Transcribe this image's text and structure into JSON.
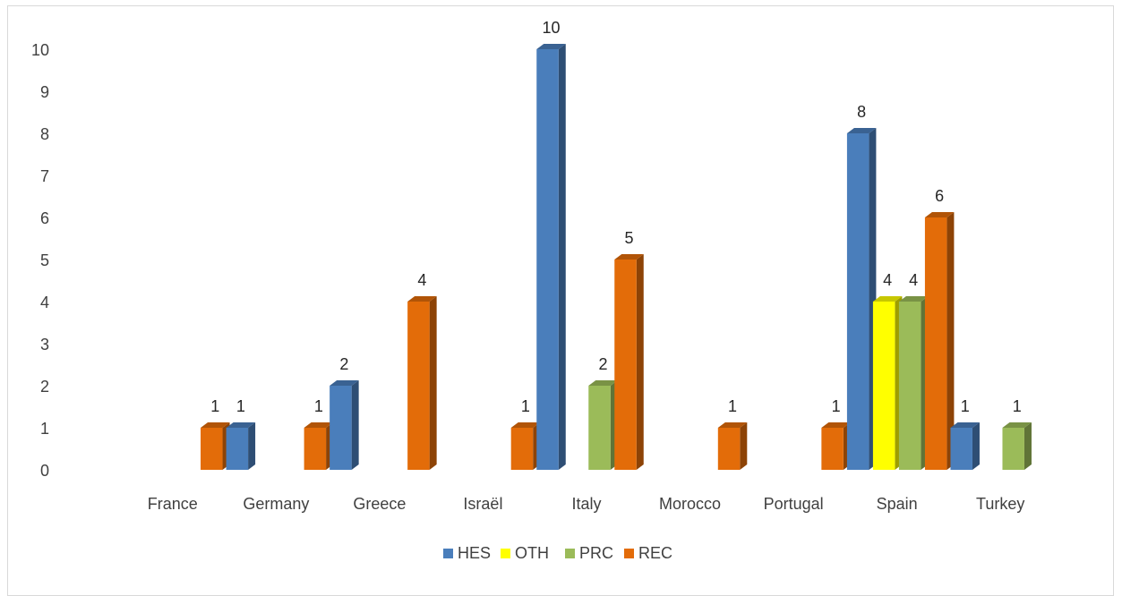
{
  "chart_data": {
    "type": "bar",
    "title": "",
    "xlabel": "",
    "ylabel": "",
    "ylim": [
      0,
      10
    ],
    "yticks": [
      0,
      1,
      2,
      3,
      4,
      5,
      6,
      7,
      8,
      9,
      10
    ],
    "grid": false,
    "legend_position": "bottom",
    "style": "3d-clustered-column",
    "categories": [
      "France",
      "Germany",
      "Greece",
      "Israël",
      "Italy",
      "Morocco",
      "Portugal",
      "Spain",
      "Turkey"
    ],
    "series": [
      {
        "name": "HES",
        "color": "#4a7ebb",
        "values": [
          null,
          1,
          2,
          null,
          10,
          null,
          null,
          8,
          1
        ]
      },
      {
        "name": "OTH",
        "color": "#ffff00",
        "values": [
          null,
          null,
          null,
          null,
          null,
          null,
          null,
          4,
          null
        ]
      },
      {
        "name": "PRC",
        "color": "#9bbb59",
        "values": [
          null,
          null,
          null,
          null,
          2,
          null,
          null,
          4,
          1
        ]
      },
      {
        "name": "REC",
        "color": "#e36c09",
        "values": [
          1,
          1,
          4,
          1,
          5,
          1,
          1,
          6,
          null
        ]
      }
    ]
  }
}
